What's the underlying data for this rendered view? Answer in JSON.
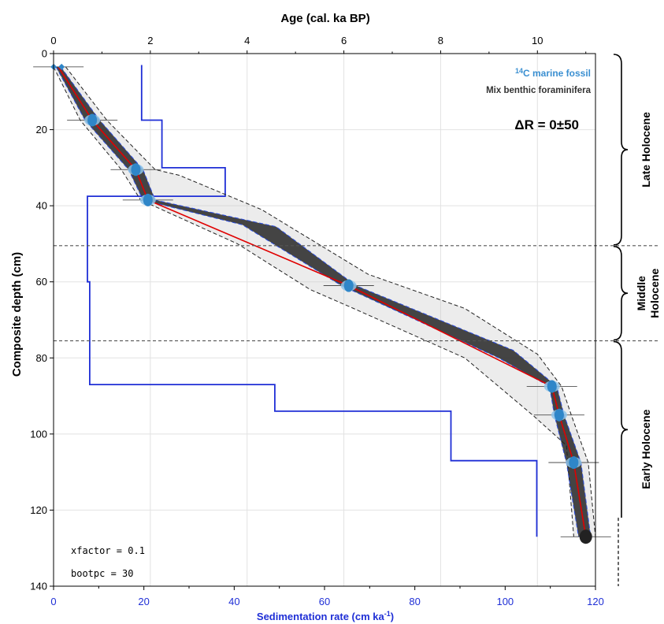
{
  "chart_data": {
    "type": "line",
    "title": "",
    "top_axis": {
      "label": "Age (cal. ka BP)",
      "range": [
        0,
        11.2
      ],
      "ticks": [
        "0",
        "2",
        "4",
        "6",
        "8",
        "10"
      ]
    },
    "bottom_axis": {
      "label_main": "Sedimentation rate (cm ka",
      "label_sup": "-1",
      "label_end": ")",
      "range": [
        0,
        120
      ],
      "ticks": [
        "0",
        "20",
        "40",
        "60",
        "80",
        "100",
        "120"
      ],
      "color": "#1f2fd6"
    },
    "y_axis": {
      "label": "Composite depth (cm)",
      "range": [
        0,
        140
      ],
      "reversed": true,
      "ticks": [
        "0",
        "20",
        "40",
        "60",
        "80",
        "100",
        "120",
        "140"
      ]
    },
    "grid": true,
    "age_model": {
      "name": "Median age",
      "color": "#e00000",
      "points": [
        {
          "age": 0.1,
          "depth": 3.5
        },
        {
          "age": 0.8,
          "depth": 17.5
        },
        {
          "age": 1.7,
          "depth": 30.5
        },
        {
          "age": 1.95,
          "depth": 38.5
        },
        {
          "age": 6.1,
          "depth": 61
        },
        {
          "age": 10.3,
          "depth": 87.5
        },
        {
          "age": 10.45,
          "depth": 95
        },
        {
          "age": 10.75,
          "depth": 107.5
        },
        {
          "age": 11.0,
          "depth": 127
        }
      ]
    },
    "inner_envelope": {
      "left": [
        {
          "age": 0.05,
          "depth": 3.5
        },
        {
          "age": 0.65,
          "depth": 17.5
        },
        {
          "age": 1.55,
          "depth": 30.5
        },
        {
          "age": 1.85,
          "depth": 38.5
        },
        {
          "age": 3.9,
          "depth": 45
        },
        {
          "age": 5.95,
          "depth": 61
        },
        {
          "age": 9.2,
          "depth": 80
        },
        {
          "age": 10.25,
          "depth": 87.5
        },
        {
          "age": 10.35,
          "depth": 95
        },
        {
          "age": 10.6,
          "depth": 107.5
        },
        {
          "age": 10.85,
          "depth": 127
        }
      ],
      "right": [
        {
          "age": 0.15,
          "depth": 3.5
        },
        {
          "age": 0.95,
          "depth": 17.5
        },
        {
          "age": 1.85,
          "depth": 30.5
        },
        {
          "age": 2.1,
          "depth": 38.5
        },
        {
          "age": 4.6,
          "depth": 45.5
        },
        {
          "age": 6.25,
          "depth": 61
        },
        {
          "age": 9.5,
          "depth": 78
        },
        {
          "age": 10.4,
          "depth": 87.5
        },
        {
          "age": 10.55,
          "depth": 95
        },
        {
          "age": 10.9,
          "depth": 107.5
        },
        {
          "age": 11.1,
          "depth": 127
        }
      ]
    },
    "outer_envelope": {
      "left": [
        {
          "age": 0.0,
          "depth": 3.5
        },
        {
          "age": 0.55,
          "depth": 17.5
        },
        {
          "age": 1.4,
          "depth": 30.5
        },
        {
          "age": 1.8,
          "depth": 38.5
        },
        {
          "age": 3.8,
          "depth": 50
        },
        {
          "age": 5.3,
          "depth": 62
        },
        {
          "age": 6.2,
          "depth": 67
        },
        {
          "age": 8.5,
          "depth": 80
        },
        {
          "age": 9.9,
          "depth": 95
        },
        {
          "age": 10.6,
          "depth": 103
        },
        {
          "age": 10.75,
          "depth": 127
        }
      ],
      "right": [
        {
          "age": 0.25,
          "depth": 3.5
        },
        {
          "age": 1.1,
          "depth": 17.5
        },
        {
          "age": 2.1,
          "depth": 30.5
        },
        {
          "age": 2.6,
          "depth": 32
        },
        {
          "age": 4.3,
          "depth": 41
        },
        {
          "age": 6.5,
          "depth": 58
        },
        {
          "age": 8.5,
          "depth": 67
        },
        {
          "age": 10.0,
          "depth": 79
        },
        {
          "age": 10.5,
          "depth": 87.5
        },
        {
          "age": 10.7,
          "depth": 95
        },
        {
          "age": 11.05,
          "depth": 107.5
        },
        {
          "age": 11.2,
          "depth": 127
        }
      ]
    },
    "dated_samples": [
      {
        "age": 0.1,
        "depth": 3.5
      },
      {
        "age": 0.8,
        "depth": 17.5
      },
      {
        "age": 1.7,
        "depth": 30.5
      },
      {
        "age": 1.95,
        "depth": 38.5
      },
      {
        "age": 6.1,
        "depth": 61
      },
      {
        "age": 10.3,
        "depth": 87.5
      },
      {
        "age": 10.45,
        "depth": 95
      },
      {
        "age": 10.75,
        "depth": 107.5
      },
      {
        "age": 11.0,
        "depth": 127
      }
    ],
    "sedimentation_rate": {
      "color": "#1f2fd6",
      "steps": [
        {
          "rate": 19.5,
          "from": 3,
          "to": 17.5
        },
        {
          "rate": 24,
          "from": 17.5,
          "to": 30
        },
        {
          "rate": 38,
          "from": 30,
          "to": 37.5
        },
        {
          "rate": 7.5,
          "from": 37.5,
          "to": 60
        },
        {
          "rate": 8,
          "from": 60,
          "to": 87
        },
        {
          "rate": 49,
          "from": 87,
          "to": 94
        },
        {
          "rate": 88,
          "from": 94,
          "to": 107
        },
        {
          "rate": 107,
          "from": 107,
          "to": 127
        }
      ]
    },
    "boundaries": [
      50.5,
      75.5
    ],
    "periods": [
      {
        "label": "Late Holocene",
        "from": 0,
        "to": 50.5
      },
      {
        "label_lines": [
          "Middle",
          "Holocene"
        ],
        "from": 50.5,
        "to": 75.5
      },
      {
        "label": "Early Holocene",
        "from": 75.5,
        "to": 140
      }
    ],
    "legend": {
      "sup": "14",
      "line1": "C marine fossil",
      "line2": "Mix benthic foraminifera",
      "line1_color": "#3a8fd1"
    },
    "annotations": {
      "delta_r": "ΔR = 0±50",
      "xfactor": "xfactor = 0.1",
      "bootpc": "bootpc = 30"
    }
  }
}
